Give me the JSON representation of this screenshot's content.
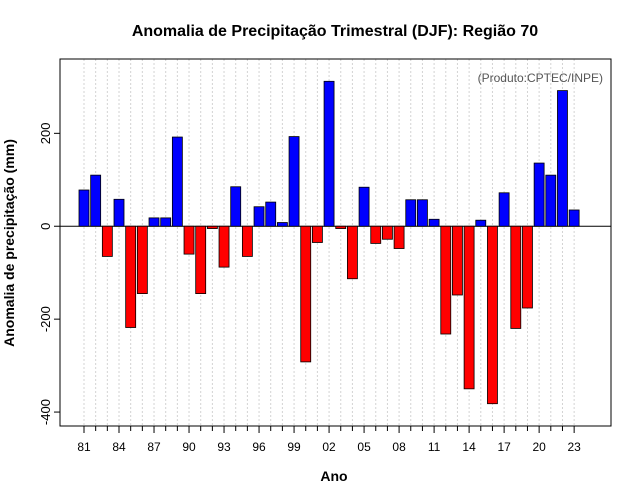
{
  "chart_data": {
    "type": "bar",
    "title": "Anomalia de Precipitação Trimestral (DJF): Região 70",
    "xlabel": "Ano",
    "ylabel": "Anomalia de precipitação (mm)",
    "credit": "(Produto:CPTEC/INPE)",
    "ylim": [
      -430,
      360
    ],
    "yticks": [
      -400,
      -200,
      0,
      200
    ],
    "ytick_labels": [
      "-400",
      "-200",
      "0",
      "200"
    ],
    "xtick_labels": [
      "81",
      "84",
      "87",
      "90",
      "93",
      "96",
      "99",
      "02",
      "05",
      "08",
      "11",
      "14",
      "17",
      "20",
      "23"
    ],
    "categories": [
      "1981",
      "1982",
      "1983",
      "1984",
      "1985",
      "1986",
      "1987",
      "1988",
      "1989",
      "1990",
      "1991",
      "1992",
      "1993",
      "1994",
      "1995",
      "1996",
      "1997",
      "1998",
      "1999",
      "2000",
      "2001",
      "2002",
      "2003",
      "2004",
      "2005",
      "2006",
      "2007",
      "2008",
      "2009",
      "2010",
      "2011",
      "2012",
      "2013",
      "2014",
      "2015",
      "2016",
      "2017",
      "2018",
      "2019",
      "2020",
      "2021",
      "2022",
      "2023"
    ],
    "values": [
      78,
      110,
      -65,
      58,
      -218,
      -145,
      18,
      18,
      192,
      -60,
      -145,
      -5,
      -88,
      85,
      -65,
      42,
      52,
      8,
      193,
      -292,
      -35,
      312,
      -5,
      -113,
      84,
      -37,
      -28,
      -48,
      57,
      57,
      15,
      -232,
      -148,
      -350,
      13,
      -382,
      72,
      -220,
      -176,
      136,
      110,
      292,
      35
    ],
    "colors": {
      "positive": "#0000ff",
      "negative": "#ff0000",
      "grid": "#d3d3d3",
      "zero_line": "#000000"
    }
  }
}
